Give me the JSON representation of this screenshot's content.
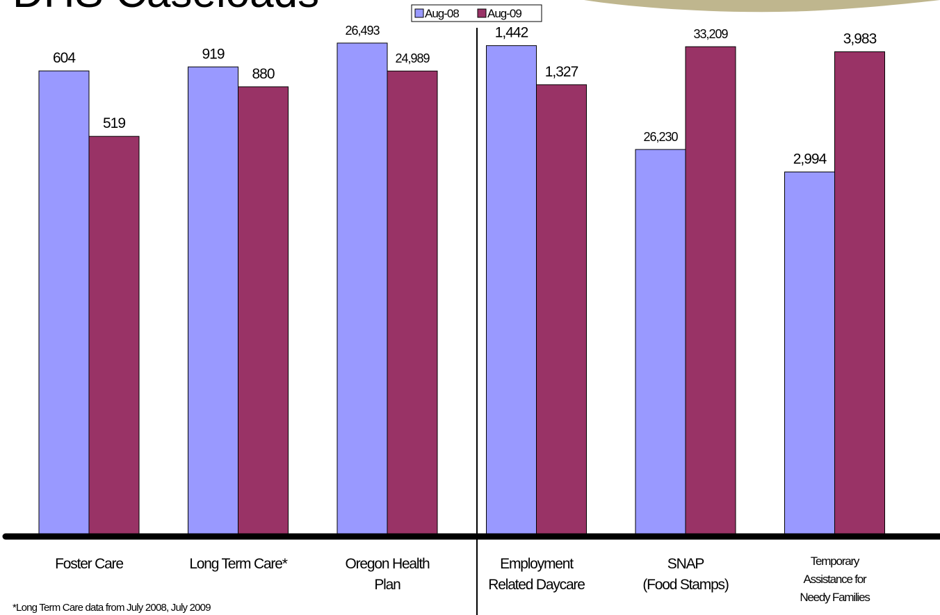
{
  "title": "DHS Caseloads",
  "footnote": "*Long Term Care data from July 2008, July 2009",
  "colors": {
    "series_1": "#9999FF",
    "series_2": "#993366",
    "decoration": "#BFB68E"
  },
  "chart_data": {
    "type": "bar",
    "title": "DHS Caseloads",
    "xlabel": "",
    "ylabel": "",
    "legend_position": "top-center",
    "grid": false,
    "per_category_scaling": true,
    "categories": [
      "Foster Care",
      "Long Term Care*",
      "Oregon Health Plan",
      "Employment Related Daycare",
      "SNAP (Food Stamps)",
      "Temporary Assistance for Needy Families"
    ],
    "category_label_lines": [
      [
        "Foster Care"
      ],
      [
        "Long Term Care*"
      ],
      [
        "Oregon Health",
        "Plan"
      ],
      [
        "Employment",
        "Related Daycare"
      ],
      [
        "SNAP",
        "(Food Stamps)"
      ],
      [
        "Temporary",
        "Assistance for",
        "Needy Families"
      ]
    ],
    "series": [
      {
        "name": "Aug-08",
        "values": [
          604,
          919,
          26493,
          1442,
          26230,
          2994
        ],
        "labels": [
          "604",
          "919",
          "26,493",
          "1,442",
          "26,230",
          "2,994"
        ]
      },
      {
        "name": "Aug-09",
        "values": [
          519,
          880,
          24989,
          1327,
          33209,
          3983
        ],
        "labels": [
          "519",
          "880",
          "24,989",
          "1,327",
          "33,209",
          "3,983"
        ]
      }
    ],
    "category_ranges": [
      [
        0,
        651
      ],
      [
        0,
        982
      ],
      [
        0,
        26940
      ],
      [
        0,
        1474
      ],
      [
        0,
        34020
      ],
      [
        0,
        4123
      ]
    ]
  }
}
